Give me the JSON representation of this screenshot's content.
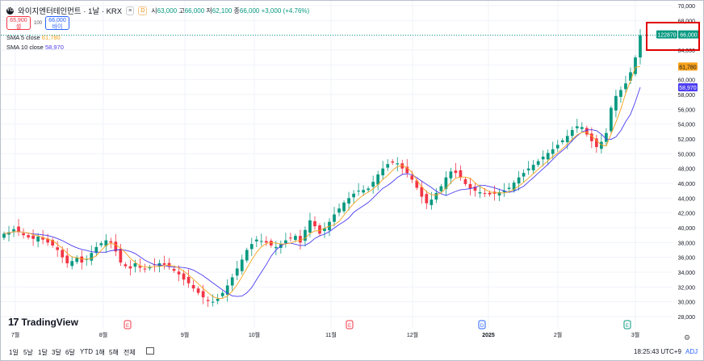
{
  "header": {
    "symbol_title": "와이지엔터테인먼트 · 1날 · KRX",
    "badge1": "≡",
    "badge2": "D",
    "o_label": "시",
    "o": "63,000",
    "h_label": "고",
    "h": "66,000",
    "l_label": "저",
    "l": "62,100",
    "c_label": "종",
    "c": "66,000",
    "change": "+3,000 (+4.76%)",
    "sell_price": "65,900",
    "sell_label": "셀",
    "buy_price": "66,000",
    "buy_label": "바이",
    "qty": "100"
  },
  "legend": {
    "sma5_label": "SMA 5 close",
    "sma5_value": "61,780",
    "sma10_label": "SMA 10 close",
    "sma10_value": "58,970"
  },
  "colors": {
    "up": "#089981",
    "down": "#f23645",
    "sma5": "#f7a21b",
    "sma10": "#4b3cf0",
    "grid": "#f0f3fa"
  },
  "branding": "TradingView",
  "chart_data": {
    "type": "candlestick",
    "y_axis": {
      "min": 28000,
      "max": 70000,
      "ticks": [
        "28,000",
        "30,000",
        "32,000",
        "34,000",
        "36,000",
        "38,000",
        "40,000",
        "42,000",
        "44,000",
        "46,000",
        "48,000",
        "50,000",
        "52,000",
        "54,000",
        "56,000",
        "58,000",
        "60,000",
        "62,000",
        "64,000",
        "66,000",
        "68,000",
        "70,000"
      ]
    },
    "x_labels": [
      "7월",
      "8월",
      "9월",
      "10월",
      "11월",
      "12월",
      "2025",
      "2월",
      "3월"
    ],
    "event_markers": [
      "E",
      "E",
      "E",
      "D",
      "E"
    ],
    "last_price": "66,000",
    "volume_tag": "122870",
    "sma5_tag": "61,780",
    "sma10_tag": "58,970",
    "closes": [
      39200,
      39400,
      39800,
      39500,
      39000,
      38700,
      38500,
      38800,
      38400,
      38000,
      37600,
      37000,
      36000,
      35200,
      35500,
      36000,
      35300,
      35800,
      36600,
      37400,
      37900,
      38300,
      38000,
      36800,
      35300,
      34800,
      34500,
      35200,
      34600,
      34400,
      34700,
      35000,
      35200,
      35000,
      34800,
      34200,
      33700,
      33000,
      32500,
      31800,
      31200,
      30600,
      30100,
      30000,
      30400,
      31200,
      32200,
      33300,
      34500,
      35700,
      37000,
      37800,
      38400,
      38200,
      38000,
      37600,
      37400,
      37800,
      38300,
      38600,
      38900,
      38000,
      39700,
      41000,
      40200,
      39200,
      39900,
      40800,
      41800,
      42600,
      43400,
      44000,
      44600,
      45000,
      45100,
      45300,
      46200,
      47200,
      48000,
      48600,
      48800,
      48700,
      48000,
      47400,
      46500,
      45400,
      44200,
      43300,
      43800,
      44700,
      45600,
      46800,
      47600,
      47400,
      46800,
      45900,
      45300,
      45000,
      44800,
      44600,
      44500,
      44600,
      44800,
      45000,
      45400,
      46100,
      46800,
      47400,
      48000,
      48500,
      49000,
      49600,
      50100,
      50600,
      51200,
      51800,
      52400,
      53200,
      53700,
      53600,
      52600,
      51700,
      50900,
      51600,
      52800,
      56200,
      57800,
      58600,
      59500,
      61000,
      63000,
      66000
    ],
    "sma5": [
      39200,
      39300,
      39467,
      39475,
      39380,
      39280,
      39080,
      38900,
      38680,
      38480,
      38260,
      37760,
      37200,
      36560,
      36060,
      35940,
      35800,
      35760,
      35840,
      36220,
      36940,
      37600,
      37940,
      37680,
      37260,
      36640,
      35880,
      35320,
      34880,
      34700,
      34680,
      34780,
      34780,
      34860,
      34940,
      34840,
      34580,
      34140,
      33640,
      33040,
      32440,
      31820,
      31240,
      30700,
      30460,
      30460,
      30780,
      31420,
      32320,
      33380,
      34540,
      35660,
      36680,
      37420,
      37880,
      38000,
      37920,
      37800,
      37820,
      37940,
      38200,
      38320,
      38580,
      39240,
      39560,
      39620,
      39960,
      40220,
      40380,
      40860,
      41700,
      42520,
      43280,
      43900,
      44420,
      44800,
      45240,
      45820,
      46520,
      47060,
      47760,
      48260,
      48420,
      48100,
      47480,
      46400,
      45540,
      44860,
      44460,
      44380,
      44720,
      45340,
      46100,
      46700,
      46840,
      46840,
      46680,
      46080,
      45560,
      45200,
      44840,
      44740,
      44700,
      44700,
      44860,
      45180,
      45620,
      46140,
      46700,
      47320,
      47900,
      48460,
      49040,
      49600,
      50100,
      50700,
      51300,
      51940,
      52540,
      52900,
      52880,
      52420,
      51760,
      51200,
      51040,
      52680,
      54260,
      56000,
      58180,
      59820,
      61680,
      61780
    ],
    "sma10": [
      39200,
      39300,
      39467,
      39475,
      39380,
      39267,
      39157,
      39112,
      39044,
      38940,
      38780,
      38540,
      38260,
      37920,
      37570,
      37300,
      37080,
      36940,
      36760,
      36700,
      36690,
      36690,
      36890,
      37000,
      37050,
      36960,
      36800,
      36520,
      36080,
      35620,
      35290,
      35000,
      34970,
      34860,
      34740,
      34680,
      34680,
      34620,
      34500,
      34280,
      33900,
      33520,
      33040,
      32540,
      32080,
      31600,
      31140,
      30800,
      30720,
      30770,
      31220,
      31920,
      32990,
      34000,
      35010,
      36160,
      37000,
      37560,
      37890,
      37920,
      37780,
      37600,
      37620,
      37990,
      38560,
      38900,
      39140,
      39490,
      39960,
      40440,
      40830,
      41320,
      42080,
      42530,
      42970,
      43400,
      44030,
      44700,
      45320,
      45720,
      46210,
      46800,
      47190,
      47310,
      47150,
      46770,
      46300,
      45860,
      45440,
      44940,
      44590,
      44360,
      44640,
      44910,
      45140,
      45190,
      45290,
      45430,
      45690,
      45720,
      45550,
      45390,
      45170,
      44990,
      44790,
      44930,
      45260,
      45610,
      46200,
      46760,
      47380,
      47970,
      48560,
      49230,
      49900,
      50430,
      51030,
      51770,
      52400,
      52930,
      53190,
      53240,
      53110,
      52630,
      51970,
      51950,
      52270,
      53100,
      54330,
      55330,
      57030,
      58970
    ]
  },
  "toolbar": {
    "items": [
      "1일",
      "5날",
      "1달",
      "3달",
      "6달",
      "YTD",
      "1해",
      "5해",
      "전체"
    ],
    "time": "18:25:43 UTC+9",
    "adj": "ADJ"
  }
}
